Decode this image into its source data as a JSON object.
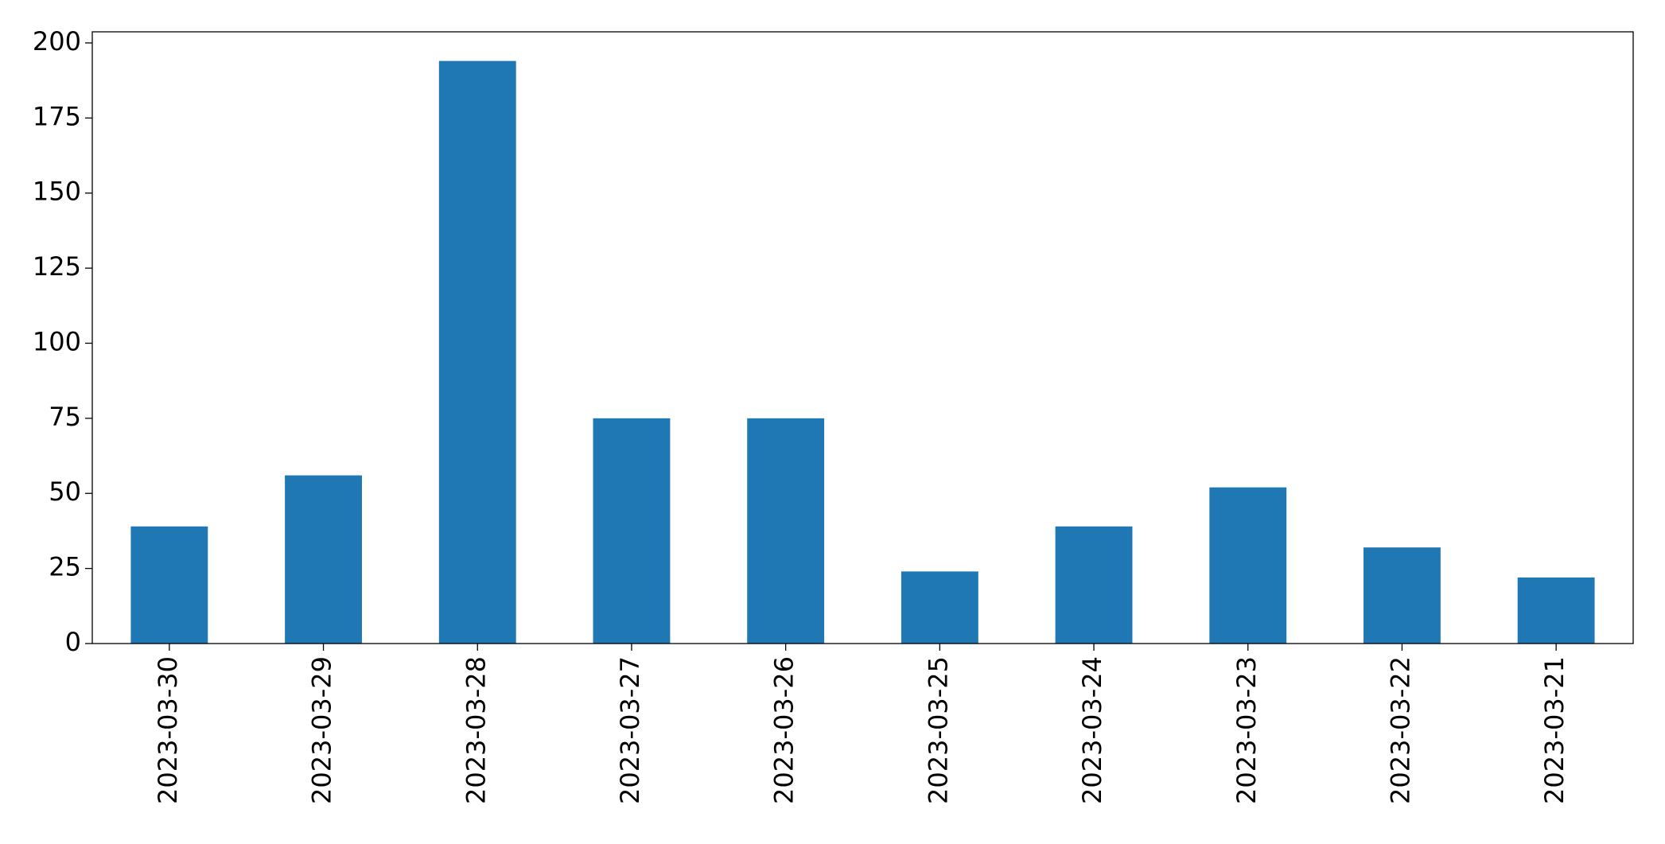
{
  "chart_data": {
    "type": "bar",
    "categories": [
      "2023-03-30",
      "2023-03-29",
      "2023-03-28",
      "2023-03-27",
      "2023-03-26",
      "2023-03-25",
      "2023-03-24",
      "2023-03-23",
      "2023-03-22",
      "2023-03-21"
    ],
    "values": [
      39,
      56,
      194,
      75,
      75,
      24,
      39,
      52,
      32,
      22
    ],
    "color": "#1f77b4",
    "ylim": [
      0,
      203.7
    ],
    "yticks": [
      0,
      25,
      50,
      75,
      100,
      125,
      150,
      175,
      200
    ],
    "grid": false
  }
}
